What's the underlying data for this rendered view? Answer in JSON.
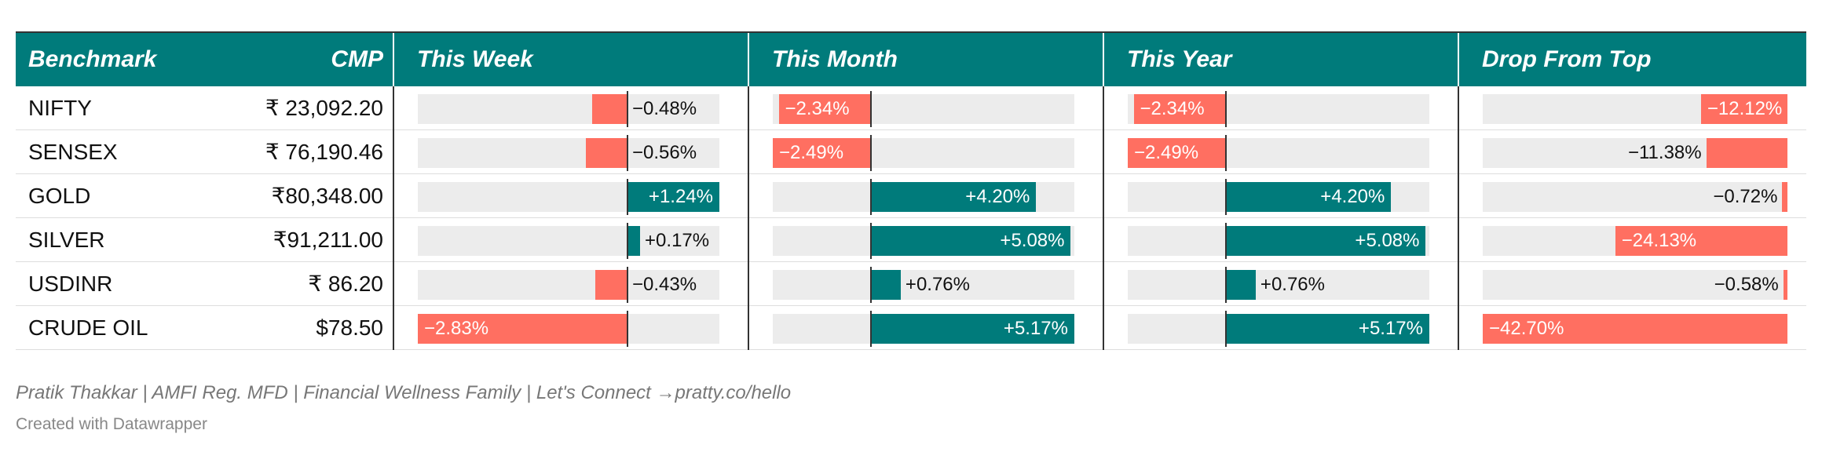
{
  "columns": {
    "benchmark": "Benchmark",
    "cmp": "CMP",
    "this_week": "This Week",
    "this_month": "This Month",
    "this_year": "This Year",
    "drop_from_top": "Drop From Top"
  },
  "colors": {
    "header": "#007b7b",
    "positive": "#007b7b",
    "negative": "#ff6f61",
    "track": "#ececec"
  },
  "chart_data": {
    "type": "table",
    "columns": [
      "Benchmark",
      "CMP",
      "This Week",
      "This Month",
      "This Year",
      "Drop From Top"
    ],
    "rows": [
      {
        "benchmark": "NIFTY",
        "cmp": "₹ 23,092.20",
        "week": -0.48,
        "week_label": "−0.48%",
        "month": -2.34,
        "month_label": "−2.34%",
        "year": -2.34,
        "year_label": "−2.34%",
        "drop": -12.12,
        "drop_label": "−12.12%"
      },
      {
        "benchmark": "SENSEX",
        "cmp": "₹ 76,190.46",
        "week": -0.56,
        "week_label": "−0.56%",
        "month": -2.49,
        "month_label": "−2.49%",
        "year": -2.49,
        "year_label": "−2.49%",
        "drop": -11.38,
        "drop_label": "−11.38%"
      },
      {
        "benchmark": "GOLD",
        "cmp": "₹80,348.00",
        "week": 1.24,
        "week_label": "+1.24%",
        "month": 4.2,
        "month_label": "+4.20%",
        "year": 4.2,
        "year_label": "+4.20%",
        "drop": -0.72,
        "drop_label": "−0.72%"
      },
      {
        "benchmark": "SILVER",
        "cmp": "₹91,211.00",
        "week": 0.17,
        "week_label": "+0.17%",
        "month": 5.08,
        "month_label": "+5.08%",
        "year": 5.08,
        "year_label": "+5.08%",
        "drop": -24.13,
        "drop_label": "−24.13%"
      },
      {
        "benchmark": "USDINR",
        "cmp": "₹ 86.20",
        "week": -0.43,
        "week_label": "−0.43%",
        "month": 0.76,
        "month_label": "+0.76%",
        "year": 0.76,
        "year_label": "+0.76%",
        "drop": -0.58,
        "drop_label": "−0.58%"
      },
      {
        "benchmark": "CRUDE OIL",
        "cmp": "$78.50",
        "week": -2.83,
        "week_label": "−2.83%",
        "month": 5.17,
        "month_label": "+5.17%",
        "year": 5.17,
        "year_label": "+5.17%",
        "drop": -42.7,
        "drop_label": "−42.70%"
      }
    ],
    "ranges": {
      "week": [
        -2.83,
        1.24
      ],
      "month": [
        -2.49,
        5.17
      ],
      "year": [
        -2.49,
        5.17
      ],
      "drop": [
        -42.7,
        0
      ]
    }
  },
  "footer": {
    "byline": "Pratik Thakkar | AMFI Reg. MFD | Financial Wellness Family | Let's Connect →pratty.co/hello",
    "credit": "Created with Datawrapper"
  }
}
